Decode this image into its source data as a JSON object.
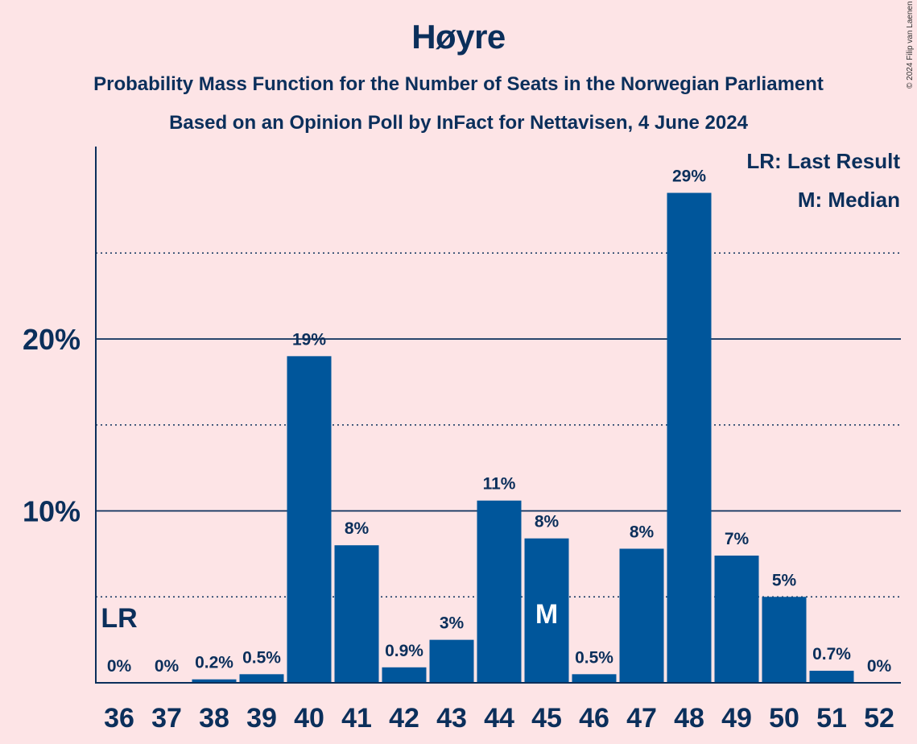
{
  "chart_data": {
    "type": "bar",
    "title": "Høyre",
    "subtitle_1": "Probability Mass Function for the Number of Seats in the Norwegian Parliament",
    "subtitle_2": "Based on an Opinion Poll by InFact for Nettavisen, 4 June 2024",
    "copyright": "© 2024 Filip van Laenen",
    "categories": [
      "36",
      "37",
      "38",
      "39",
      "40",
      "41",
      "42",
      "43",
      "44",
      "45",
      "46",
      "47",
      "48",
      "49",
      "50",
      "51",
      "52"
    ],
    "values": [
      0,
      0,
      0.2,
      0.5,
      19,
      8,
      0.9,
      2.5,
      10.6,
      8.4,
      0.5,
      7.8,
      28.5,
      7.4,
      5,
      0.7,
      0
    ],
    "value_labels": [
      "0%",
      "0%",
      "0.2%",
      "0.5%",
      "19%",
      "8%",
      "0.9%",
      "3%",
      "11%",
      "8%",
      "0.5%",
      "8%",
      "29%",
      "7%",
      "5%",
      "0.7%",
      "0%"
    ],
    "ylim": [
      0,
      31
    ],
    "y_ticks_solid": [
      10,
      20
    ],
    "y_tick_labels": [
      "10%",
      "20%"
    ],
    "y_gridlines_dotted": [
      5,
      15,
      25
    ],
    "last_result_seat": "36",
    "median_seat": "45",
    "last_result_marker": "LR",
    "median_marker": "M",
    "legend": [
      "LR: Last Result",
      "M: Median"
    ],
    "legend_position": "top-right",
    "colors": {
      "bar": "#00569b",
      "background": "#fde4e6",
      "text": "#0b2f5b",
      "bar_label_on_bar": "#ffffff"
    }
  }
}
